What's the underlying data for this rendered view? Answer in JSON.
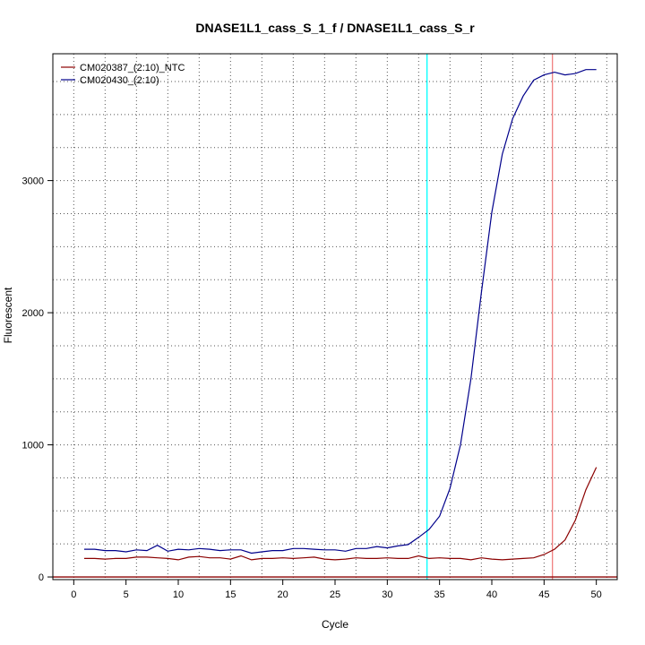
{
  "chart_data": {
    "type": "line",
    "title": "DNASE1L1_cass_S_1_f / DNASE1L1_cass_S_r",
    "xlabel": "Cycle",
    "ylabel": "Fluorescent",
    "xlim": [
      -2,
      52
    ],
    "ylim": [
      -20,
      3960
    ],
    "x_ticks": [
      0,
      5,
      10,
      15,
      20,
      25,
      30,
      35,
      40,
      45,
      50
    ],
    "y_ticks": [
      0,
      1000,
      2000,
      3000
    ],
    "grid": "dotted",
    "legend_position": "top-left",
    "series": [
      {
        "name": "CM020387_(2:10)_NTC",
        "color": "#8b0000",
        "x": [
          1,
          2,
          3,
          4,
          5,
          6,
          7,
          8,
          9,
          10,
          11,
          12,
          13,
          14,
          15,
          16,
          17,
          18,
          19,
          20,
          21,
          22,
          23,
          24,
          25,
          26,
          27,
          28,
          29,
          30,
          31,
          32,
          33,
          34,
          35,
          36,
          37,
          38,
          39,
          40,
          41,
          42,
          43,
          44,
          45,
          46,
          47,
          48,
          49,
          50
        ],
        "y": [
          140,
          140,
          135,
          140,
          140,
          150,
          150,
          145,
          140,
          130,
          150,
          155,
          145,
          145,
          135,
          160,
          130,
          140,
          140,
          145,
          140,
          145,
          150,
          135,
          130,
          135,
          145,
          140,
          140,
          145,
          140,
          140,
          160,
          140,
          145,
          140,
          140,
          130,
          145,
          135,
          130,
          135,
          140,
          145,
          170,
          210,
          280,
          430,
          660,
          830
        ]
      },
      {
        "name": "CM020430_(2:10)",
        "color": "#00008b",
        "x": [
          1,
          2,
          3,
          4,
          5,
          6,
          7,
          8,
          9,
          10,
          11,
          12,
          13,
          14,
          15,
          16,
          17,
          18,
          19,
          20,
          21,
          22,
          23,
          24,
          25,
          26,
          27,
          28,
          29,
          30,
          31,
          32,
          33,
          34,
          35,
          36,
          37,
          38,
          39,
          40,
          41,
          42,
          43,
          44,
          45,
          46,
          47,
          48,
          49,
          50
        ],
        "y": [
          210,
          210,
          200,
          200,
          190,
          205,
          200,
          240,
          195,
          210,
          205,
          215,
          210,
          200,
          205,
          205,
          180,
          190,
          200,
          200,
          215,
          215,
          210,
          205,
          205,
          195,
          215,
          215,
          230,
          220,
          235,
          245,
          300,
          360,
          460,
          670,
          1000,
          1500,
          2150,
          2760,
          3200,
          3470,
          3640,
          3760,
          3800,
          3820,
          3800,
          3810,
          3840,
          3840
        ]
      }
    ],
    "reference_lines": [
      {
        "orientation": "vertical",
        "x": 33.8,
        "color": "#00ffff"
      },
      {
        "orientation": "vertical",
        "x": 45.8,
        "color": "#f08080"
      },
      {
        "orientation": "horizontal",
        "y": 0,
        "color": "#8b0000"
      }
    ]
  }
}
